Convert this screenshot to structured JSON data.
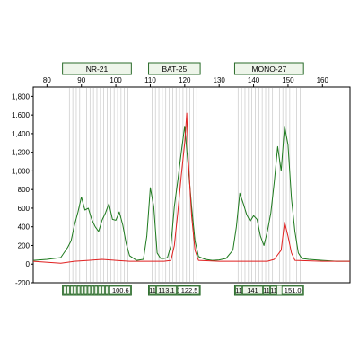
{
  "chart_data": {
    "type": "line",
    "title": "",
    "xlabel": "",
    "ylabel": "",
    "xlim": [
      76,
      168
    ],
    "ylim": [
      -200,
      1900
    ],
    "x_ticks": [
      "80",
      "90",
      "100",
      "110",
      "120",
      "130",
      "140",
      "150",
      "160"
    ],
    "y_ticks": [
      "-200",
      "0",
      "200",
      "400",
      "600",
      "800",
      "1,000",
      "1,200",
      "1,400",
      "1,600",
      "1,800"
    ],
    "grid": false,
    "legend": "none",
    "markers": [
      {
        "name": "NR-21",
        "range": [
          84.5,
          104.5
        ]
      },
      {
        "name": "BAT-25",
        "range": [
          109.5,
          124.5
        ]
      },
      {
        "name": "MONO-27",
        "range": [
          134.5,
          154.5
        ]
      }
    ],
    "allele_labels": [
      {
        "marker": "NR-21",
        "text": "100.6",
        "bins": 13
      },
      {
        "marker": "BAT-25",
        "text": "113.1",
        "first": "11",
        "extra": [
          "11",
          "11"
        ],
        "tail": "122.5"
      },
      {
        "marker": "MONO-27",
        "text": "141",
        "first": "11",
        "extra": [
          "11",
          "11"
        ],
        "tail": "151.0"
      }
    ],
    "series": [
      {
        "color": "#1e7a1e",
        "points": [
          [
            76,
            40
          ],
          [
            80,
            50
          ],
          [
            84,
            70
          ],
          [
            86,
            180
          ],
          [
            87,
            250
          ],
          [
            88,
            420
          ],
          [
            89,
            560
          ],
          [
            90,
            720
          ],
          [
            91,
            580
          ],
          [
            92,
            600
          ],
          [
            93,
            480
          ],
          [
            94,
            400
          ],
          [
            95,
            350
          ],
          [
            96,
            470
          ],
          [
            97,
            550
          ],
          [
            98,
            650
          ],
          [
            99,
            480
          ],
          [
            100,
            470
          ],
          [
            101,
            560
          ],
          [
            102,
            420
          ],
          [
            103,
            220
          ],
          [
            104,
            90
          ],
          [
            106,
            40
          ],
          [
            108,
            50
          ],
          [
            109,
            300
          ],
          [
            110,
            820
          ],
          [
            111,
            620
          ],
          [
            112,
            120
          ],
          [
            113,
            60
          ],
          [
            114,
            60
          ],
          [
            115,
            70
          ],
          [
            116,
            200
          ],
          [
            117,
            620
          ],
          [
            118,
            900
          ],
          [
            119,
            1200
          ],
          [
            120,
            1480
          ],
          [
            121,
            1050
          ],
          [
            122,
            620
          ],
          [
            123,
            250
          ],
          [
            124,
            80
          ],
          [
            126,
            50
          ],
          [
            128,
            40
          ],
          [
            130,
            45
          ],
          [
            132,
            60
          ],
          [
            134,
            150
          ],
          [
            135,
            400
          ],
          [
            136,
            760
          ],
          [
            137,
            650
          ],
          [
            138,
            530
          ],
          [
            139,
            460
          ],
          [
            140,
            520
          ],
          [
            141,
            480
          ],
          [
            142,
            300
          ],
          [
            143,
            200
          ],
          [
            144,
            350
          ],
          [
            145,
            550
          ],
          [
            146,
            880
          ],
          [
            147,
            1260
          ],
          [
            148,
            1000
          ],
          [
            149,
            1480
          ],
          [
            150,
            1280
          ],
          [
            151,
            700
          ],
          [
            152,
            350
          ],
          [
            153,
            120
          ],
          [
            154,
            60
          ],
          [
            156,
            50
          ],
          [
            160,
            40
          ],
          [
            164,
            30
          ],
          [
            168,
            30
          ]
        ]
      },
      {
        "color": "#e02020",
        "points": [
          [
            76,
            30
          ],
          [
            84,
            10
          ],
          [
            88,
            30
          ],
          [
            92,
            40
          ],
          [
            96,
            50
          ],
          [
            100,
            40
          ],
          [
            104,
            30
          ],
          [
            110,
            30
          ],
          [
            114,
            30
          ],
          [
            116,
            40
          ],
          [
            117,
            200
          ],
          [
            118,
            560
          ],
          [
            119,
            950
          ],
          [
            120,
            1300
          ],
          [
            120.6,
            1620
          ],
          [
            121,
            1150
          ],
          [
            122,
            520
          ],
          [
            123,
            150
          ],
          [
            124,
            40
          ],
          [
            130,
            30
          ],
          [
            136,
            30
          ],
          [
            140,
            30
          ],
          [
            144,
            30
          ],
          [
            146,
            50
          ],
          [
            148,
            150
          ],
          [
            149,
            450
          ],
          [
            150,
            300
          ],
          [
            151,
            120
          ],
          [
            152,
            40
          ],
          [
            160,
            30
          ],
          [
            168,
            30
          ]
        ]
      }
    ]
  }
}
